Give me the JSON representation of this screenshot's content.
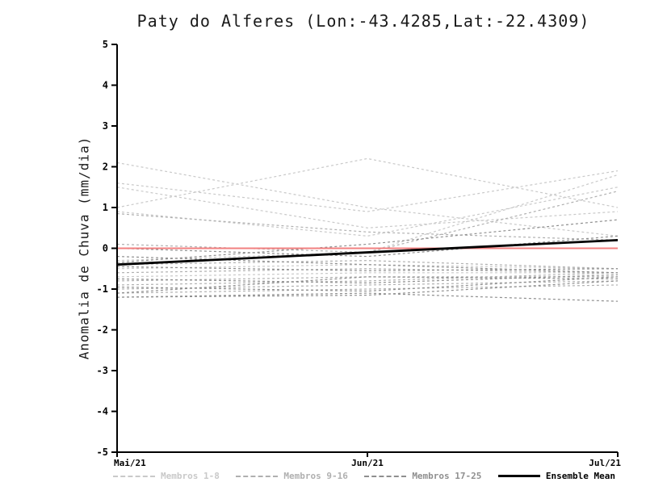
{
  "title": "Paty do Alferes (Lon:-43.4285,Lat:-22.4309)",
  "chart_data": {
    "type": "line",
    "title": "Paty do Alferes (Lon:-43.4285,Lat:-22.4309)",
    "x": [
      "Mai/21",
      "Jun/21",
      "Jul/21"
    ],
    "xlabel": "",
    "ylabel": "Anomalia de Chuva (mm/dia)",
    "ylim": [
      -5,
      5
    ],
    "ytick_step": 1,
    "grid": false,
    "legend_position": "bottom",
    "series_groups": [
      {
        "name": "Membros 1-8",
        "color": "#c9c9c9",
        "dash": "3,3",
        "members": [
          [
            2.1,
            1.0,
            0.3
          ],
          [
            1.6,
            0.9,
            1.9
          ],
          [
            1.5,
            0.5,
            0.9
          ],
          [
            1.0,
            2.2,
            1.0
          ],
          [
            0.9,
            0.3,
            1.5
          ],
          [
            -0.3,
            -0.1,
            1.8
          ],
          [
            -0.5,
            -0.4,
            -0.5
          ],
          [
            -0.7,
            -0.6,
            -0.6
          ]
        ]
      },
      {
        "name": "Membros 9-16",
        "color": "#b0b0b0",
        "dash": "3,3",
        "members": [
          [
            0.85,
            0.4,
            0.2
          ],
          [
            0.1,
            -0.1,
            1.4
          ],
          [
            -0.4,
            -0.3,
            -0.5
          ],
          [
            -0.6,
            -0.5,
            -0.6
          ],
          [
            -0.8,
            -0.7,
            -0.7
          ],
          [
            -0.9,
            -0.8,
            -0.6
          ],
          [
            -1.0,
            -0.9,
            -0.8
          ],
          [
            -1.1,
            -1.0,
            -0.9
          ]
        ]
      },
      {
        "name": "Membros 17-25",
        "color": "#8f8f8f",
        "dash": "3,3",
        "members": [
          [
            0.0,
            -0.2,
            0.3
          ],
          [
            -0.2,
            -0.4,
            -0.6
          ],
          [
            -0.45,
            -0.55,
            -0.5
          ],
          [
            -0.75,
            -0.85,
            -0.65
          ],
          [
            -0.95,
            -1.05,
            -0.7
          ],
          [
            -1.1,
            -0.7,
            -0.75
          ],
          [
            -1.2,
            -1.1,
            -1.3
          ],
          [
            -1.2,
            -1.15,
            -0.8
          ],
          [
            -0.35,
            0.1,
            0.7
          ]
        ]
      }
    ],
    "zero_line": {
      "color": "#f28080",
      "values": [
        0,
        0,
        0
      ]
    },
    "ensemble_mean": {
      "name": "Ensemble Mean",
      "color": "#000000",
      "values": [
        -0.4,
        -0.1,
        0.2
      ]
    }
  },
  "legend": {
    "entries": [
      {
        "label": "Membros 1-8",
        "color": "#c9c9c9",
        "style": "dashed"
      },
      {
        "label": "Membros 9-16",
        "color": "#b0b0b0",
        "style": "dashed"
      },
      {
        "label": "Membros 17-25",
        "color": "#8f8f8f",
        "style": "dashed"
      },
      {
        "label": "Ensemble Mean",
        "color": "#000000",
        "style": "solid"
      }
    ]
  }
}
